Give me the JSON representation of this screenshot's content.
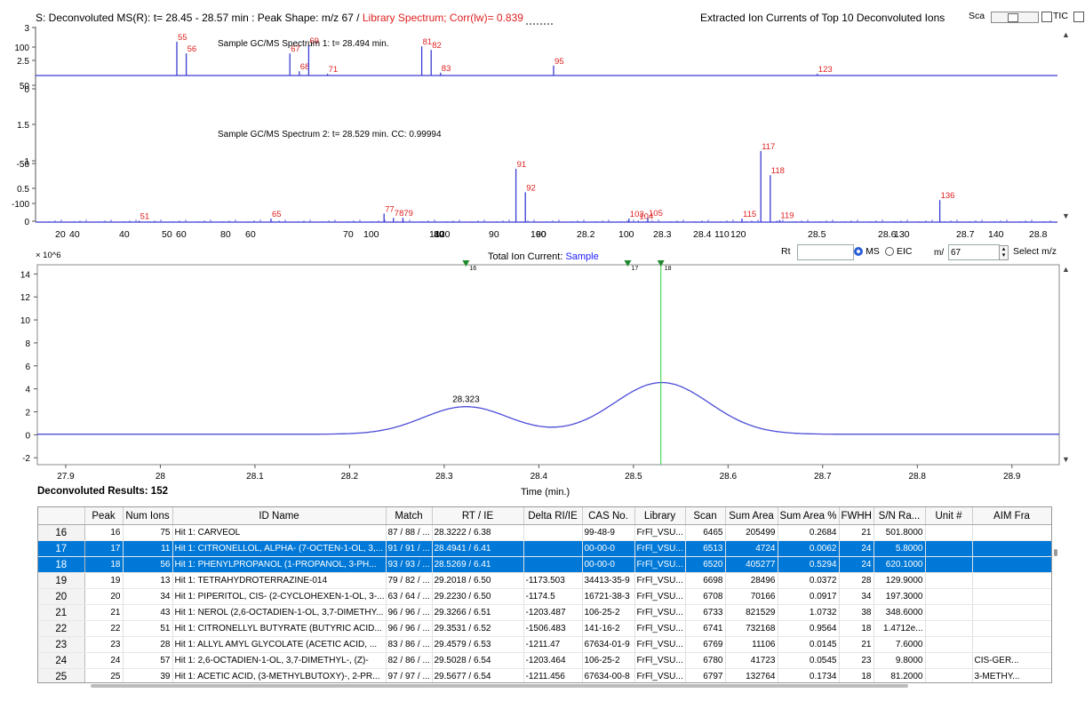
{
  "deconv_header": {
    "prefix": "S: Deconvoluted MS(R): t= 28.45 - 28.57 min : Peak Shape: m/z  67 /",
    "library_part": "Library Spectrum; Corr(lw)= 0.839",
    "extracted_title": "Extracted Ion Currents of Top 10 Deconvoluted Ions",
    "sca_label": "Sca",
    "tic_label": "TIC"
  },
  "spectrum1": {
    "label": "Sample GC/MS Spectrum 1: t= 28.494 min.",
    "peaks": [
      {
        "mz": "55",
        "v": 0.95
      },
      {
        "mz": "56",
        "v": 0.62
      },
      {
        "mz": "67",
        "v": 0.62
      },
      {
        "mz": "68",
        "v": 0.12
      },
      {
        "mz": "69",
        "v": 0.85
      },
      {
        "mz": "71",
        "v": 0.05
      },
      {
        "mz": "81",
        "v": 0.82
      },
      {
        "mz": "82",
        "v": 0.72
      },
      {
        "mz": "83",
        "v": 0.08
      },
      {
        "mz": "95",
        "v": 0.28
      },
      {
        "mz": "123",
        "v": 0.05
      }
    ]
  },
  "spectrum2": {
    "label": "Sample GC/MS Spectrum 2: t= 28.529 min. CC: 0.99994",
    "peaks": [
      {
        "mz": "51",
        "v": 0.02
      },
      {
        "mz": "65",
        "v": 0.05
      },
      {
        "mz": "77",
        "v": 0.12
      },
      {
        "mz": "78",
        "v": 0.06
      },
      {
        "mz": "79",
        "v": 0.06
      },
      {
        "mz": "91",
        "v": 0.75
      },
      {
        "mz": "92",
        "v": 0.42
      },
      {
        "mz": "103",
        "v": 0.05
      },
      {
        "mz": "104",
        "v": 0.02
      },
      {
        "mz": "105",
        "v": 0.06
      },
      {
        "mz": "115",
        "v": 0.05
      },
      {
        "mz": "117",
        "v": 1.0
      },
      {
        "mz": "118",
        "v": 0.66
      },
      {
        "mz": "119",
        "v": 0.03
      },
      {
        "mz": "136",
        "v": 0.31
      }
    ]
  },
  "top_axis": {
    "left_ticks": [
      "3",
      "100",
      "2.5",
      "50",
      "0",
      "1.5",
      "1",
      "-50",
      "0.5",
      "-100",
      "0"
    ],
    "bottom_labels": [
      "20",
      "40",
      "40",
      "50",
      "60",
      "80",
      "60",
      "70",
      "100",
      "120",
      "140",
      "80",
      "90",
      "160",
      "90",
      "28.2",
      "100",
      "28.3",
      "28.4",
      "110",
      "120",
      "28.5",
      "28.6",
      "130",
      "28.7",
      "140",
      "28.8"
    ]
  },
  "controls": {
    "rt_label": "Rt",
    "rt_value": "",
    "ms_label": "MS",
    "eic_label": "EIC",
    "mz_label": "m/",
    "mz_value": "67",
    "select_mz_label": "Select m/z"
  },
  "tic": {
    "title_prefix": "Total Ion Current: ",
    "title_sample": "Sample",
    "y_multiplier": "× 10^6",
    "y_ticks": [
      "14",
      "12",
      "10",
      "8",
      "6",
      "4",
      "2",
      "0",
      "-2"
    ],
    "x_ticks": [
      "27.9",
      "28",
      "28.1",
      "28.2",
      "28.3",
      "28.4",
      "28.5",
      "28.6",
      "28.7",
      "28.8",
      "28.9"
    ],
    "xlabel": "Time (min.)",
    "peak_label": "28.323",
    "markers": [
      "16",
      "17",
      "18"
    ],
    "marker_times": [
      28.323,
      28.494,
      28.529
    ],
    "selected_time": 28.529,
    "line_color": "#4b4bd8",
    "marker_color": "#1f8a2c"
  },
  "results": {
    "title": "Deconvoluted Results: 152",
    "columns": [
      "",
      "Peak",
      "Num Ions",
      "ID Name",
      "Match",
      "RT / IE",
      "Delta RI/IE",
      "CAS No.",
      "Library",
      "Scan",
      "Sum Area",
      "Sum Area %",
      "FWHH",
      "S/N Ra...",
      "Unit #",
      "AIM Fra"
    ],
    "rows": [
      {
        "row": "16",
        "peak": "16",
        "ions": "75",
        "name": "Hit  1: CARVEOL",
        "match": "87 / 88 / ...",
        "rt": "28.3222 /  6.38",
        "delta": "",
        "cas": "99-48-9",
        "lib": "FrFl_VSU...",
        "scan": "6465",
        "area": "205499",
        "pct": "0.2684",
        "fwhh": "21",
        "sn": "501.8000",
        "unit": "",
        "aim": ""
      },
      {
        "row": "17",
        "peak": "17",
        "ions": "11",
        "name": "Hit  1: CITRONELLOL, ALPHA- (7-OCTEN-1-OL, 3,...",
        "match": "91 / 91 / ...",
        "rt": "28.4941 /  6.41",
        "delta": "",
        "cas": "00-00-0",
        "lib": "FrFl_VSU...",
        "scan": "6513",
        "area": "4724",
        "pct": "0.0062",
        "fwhh": "24",
        "sn": "5.8000",
        "unit": "",
        "aim": ""
      },
      {
        "row": "18",
        "peak": "18",
        "ions": "56",
        "name": "Hit  1: PHENYLPROPANOL (1-PROPANOL, 3-PH...",
        "match": "93 / 93 / ...",
        "rt": "28.5269 /  6.41",
        "delta": "",
        "cas": "00-00-0",
        "lib": "FrFl_VSU...",
        "scan": "6520",
        "area": "405277",
        "pct": "0.5294",
        "fwhh": "24",
        "sn": "620.1000",
        "unit": "",
        "aim": ""
      },
      {
        "row": "19",
        "peak": "19",
        "ions": "13",
        "name": "Hit  1: TETRAHYDROTERRAZINE-014",
        "match": "79 / 82 / ...",
        "rt": "29.2018 /  6.50",
        "delta": "-1173.503",
        "cas": "34413-35-9",
        "lib": "FrFl_VSU...",
        "scan": "6698",
        "area": "28496",
        "pct": "0.0372",
        "fwhh": "28",
        "sn": "129.9000",
        "unit": "",
        "aim": ""
      },
      {
        "row": "20",
        "peak": "20",
        "ions": "34",
        "name": "Hit  1: PIPERITOL, CIS- (2-CYCLOHEXEN-1-OL, 3-...",
        "match": "63 / 64 / ...",
        "rt": "29.2230 /  6.50",
        "delta": "-1174.5",
        "cas": "16721-38-3",
        "lib": "FrFl_VSU...",
        "scan": "6708",
        "area": "70166",
        "pct": "0.0917",
        "fwhh": "34",
        "sn": "197.3000",
        "unit": "",
        "aim": ""
      },
      {
        "row": "21",
        "peak": "21",
        "ions": "43",
        "name": "Hit  1: NEROL (2,6-OCTADIEN-1-OL, 3,7-DIMETHY...",
        "match": "96 / 96 / ...",
        "rt": "29.3266 /  6.51",
        "delta": "-1203.487",
        "cas": "106-25-2",
        "lib": "FrFl_VSU...",
        "scan": "6733",
        "area": "821529",
        "pct": "1.0732",
        "fwhh": "38",
        "sn": "348.6000",
        "unit": "",
        "aim": ""
      },
      {
        "row": "22",
        "peak": "22",
        "ions": "51",
        "name": "Hit  1: CITRONELLYL BUTYRATE (BUTYRIC ACID...",
        "match": "96 / 96 / ...",
        "rt": "29.3531 /  6.52",
        "delta": "-1506.483",
        "cas": "141-16-2",
        "lib": "FrFl_VSU...",
        "scan": "6741",
        "area": "732168",
        "pct": "0.9564",
        "fwhh": "18",
        "sn": "1.4712e...",
        "unit": "",
        "aim": ""
      },
      {
        "row": "23",
        "peak": "23",
        "ions": "28",
        "name": "Hit  1: ALLYL AMYL GLYCOLATE (ACETIC ACID, ...",
        "match": "83 / 86 / ...",
        "rt": "29.4579 /  6.53",
        "delta": "-1211.47",
        "cas": "67634-01-9",
        "lib": "FrFl_VSU...",
        "scan": "6769",
        "area": "11106",
        "pct": "0.0145",
        "fwhh": "21",
        "sn": "7.6000",
        "unit": "",
        "aim": ""
      },
      {
        "row": "24",
        "peak": "24",
        "ions": "57",
        "name": "Hit  1: 2,6-OCTADIEN-1-OL, 3,7-DIMETHYL-, (Z)-",
        "match": "82 / 86 / ...",
        "rt": "29.5028 /  6.54",
        "delta": "-1203.464",
        "cas": "106-25-2",
        "lib": "FrFl_VSU...",
        "scan": "6780",
        "area": "41723",
        "pct": "0.0545",
        "fwhh": "23",
        "sn": "9.8000",
        "unit": "",
        "aim": "CIS-GER..."
      },
      {
        "row": "25",
        "peak": "25",
        "ions": "39",
        "name": "Hit  1: ACETIC ACID, (3-METHYLBUTOXY)-, 2-PR...",
        "match": "97 / 97 / ...",
        "rt": "29.5677 /  6.54",
        "delta": "-1211.456",
        "cas": "67634-00-8",
        "lib": "FrFl_VSU...",
        "scan": "6797",
        "area": "132764",
        "pct": "0.1734",
        "fwhh": "18",
        "sn": "81.2000",
        "unit": "",
        "aim": "3-METHY..."
      }
    ],
    "selected_rows": [
      "17",
      "18"
    ]
  },
  "colors": {
    "baseline": "#3b3bd4",
    "peak_label": "#e02020",
    "selection": "#0078d7"
  }
}
